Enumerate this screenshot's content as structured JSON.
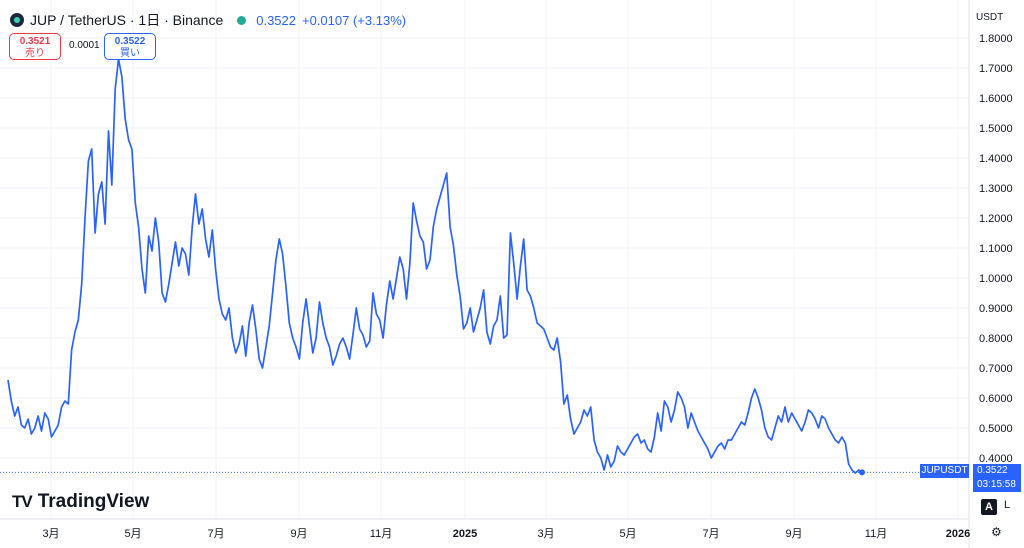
{
  "header": {
    "symbol_title": "JUP / TetherUS · 1日 · Binance",
    "price": "0.3522",
    "change": "+0.0107 (+3.13%)"
  },
  "quote": {
    "sell_price": "0.3521",
    "sell_label": "売り",
    "buy_price": "0.3522",
    "buy_label": "買い",
    "spread": "0.0001"
  },
  "price_axis_unit": "USDT",
  "last_price": {
    "symbol": "JUPUSDT",
    "price": "0.3522",
    "countdown": "03:15:58"
  },
  "branding": {
    "mark": "TV",
    "name": "TradingView"
  },
  "controls": {
    "auto_label": "A",
    "log_label": "L",
    "settings_icon": "gear-icon"
  },
  "colors": {
    "line": "#2962ff",
    "grid": "#f0f3fa",
    "axis_text": "#131722",
    "price_tag": "#2962ff"
  },
  "chart_data": {
    "type": "line",
    "series": [
      {
        "values": [
          0.66,
          0.59,
          0.54,
          0.57,
          0.51,
          0.5,
          0.53,
          0.48,
          0.5,
          0.54,
          0.49,
          0.55,
          0.53,
          0.47,
          0.49,
          0.51,
          0.57,
          0.59,
          0.58,
          0.76,
          0.82,
          0.86,
          0.98,
          1.2,
          1.39,
          1.43,
          1.15,
          1.28,
          1.32,
          1.18,
          1.49,
          1.31,
          1.63,
          1.73,
          1.67,
          1.53,
          1.46,
          1.43,
          1.25,
          1.17,
          1.03,
          0.95,
          1.14,
          1.09,
          1.2,
          1.12,
          0.95,
          0.92,
          0.98,
          1.05,
          1.12,
          1.04,
          1.1,
          1.08,
          1.01,
          1.17,
          1.28,
          1.18,
          1.23,
          1.13,
          1.07,
          1.16,
          1.03,
          0.93,
          0.88,
          0.86,
          0.9,
          0.8,
          0.75,
          0.78,
          0.84,
          0.74,
          0.85,
          0.91,
          0.83,
          0.73,
          0.7,
          0.77,
          0.84,
          0.95,
          1.06,
          1.13,
          1.08,
          0.97,
          0.85,
          0.8,
          0.77,
          0.73,
          0.85,
          0.93,
          0.84,
          0.75,
          0.8,
          0.92,
          0.85,
          0.8,
          0.77,
          0.71,
          0.74,
          0.78,
          0.8,
          0.77,
          0.73,
          0.81,
          0.9,
          0.83,
          0.81,
          0.77,
          0.79,
          0.95,
          0.88,
          0.86,
          0.8,
          0.91,
          0.99,
          0.93,
          1.0,
          1.07,
          1.03,
          0.93,
          1.05,
          1.25,
          1.19,
          1.14,
          1.12,
          1.03,
          1.06,
          1.17,
          1.23,
          1.27,
          1.31,
          1.35,
          1.17,
          1.11,
          1.01,
          0.94,
          0.83,
          0.85,
          0.9,
          0.82,
          0.86,
          0.9,
          0.96,
          0.82,
          0.78,
          0.84,
          0.86,
          0.94,
          0.8,
          0.81,
          1.15,
          1.05,
          0.93,
          1.04,
          1.13,
          0.96,
          0.94,
          0.9,
          0.85,
          0.84,
          0.83,
          0.8,
          0.77,
          0.76,
          0.8,
          0.72,
          0.58,
          0.61,
          0.53,
          0.48,
          0.5,
          0.52,
          0.56,
          0.54,
          0.57,
          0.46,
          0.42,
          0.4,
          0.36,
          0.41,
          0.37,
          0.39,
          0.44,
          0.42,
          0.41,
          0.43,
          0.45,
          0.47,
          0.48,
          0.45,
          0.46,
          0.43,
          0.42,
          0.47,
          0.55,
          0.49,
          0.59,
          0.57,
          0.52,
          0.56,
          0.62,
          0.6,
          0.57,
          0.5,
          0.55,
          0.52,
          0.49,
          0.47,
          0.45,
          0.43,
          0.4,
          0.42,
          0.44,
          0.45,
          0.43,
          0.46,
          0.46,
          0.48,
          0.5,
          0.52,
          0.51,
          0.55,
          0.6,
          0.63,
          0.6,
          0.56,
          0.5,
          0.47,
          0.46,
          0.5,
          0.54,
          0.52,
          0.57,
          0.52,
          0.55,
          0.53,
          0.51,
          0.49,
          0.52,
          0.56,
          0.55,
          0.53,
          0.5,
          0.54,
          0.53,
          0.5,
          0.48,
          0.46,
          0.45,
          0.47,
          0.45,
          0.38,
          0.36,
          0.35,
          0.36,
          0.35
        ]
      }
    ],
    "x_ticks": [
      "3月",
      "5月",
      "7月",
      "9月",
      "11月",
      "2025",
      "3月",
      "5月",
      "7月",
      "9月",
      "11月",
      "2026"
    ],
    "y_ticks": [
      "1.8000",
      "1.7000",
      "1.6000",
      "1.5000",
      "1.4000",
      "1.3000",
      "1.2000",
      "1.1000",
      "1.0000",
      "0.9000",
      "0.8000",
      "0.7000",
      "0.6000",
      "0.5000",
      "0.4000"
    ],
    "ylim": [
      0.32,
      1.82
    ],
    "last_value": 0.3522,
    "grid": true
  }
}
